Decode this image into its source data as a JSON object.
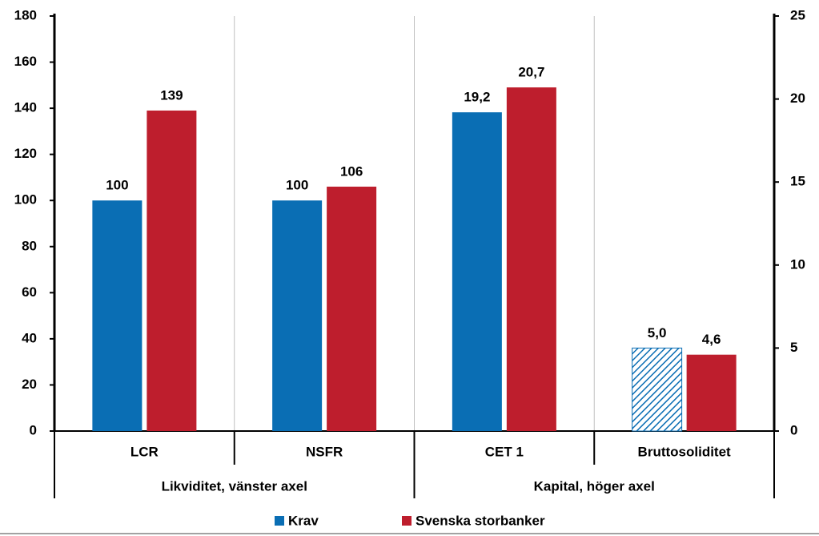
{
  "chart_data": {
    "type": "bar",
    "categories": [
      "LCR",
      "NSFR",
      "CET 1",
      "Bruttosoliditet"
    ],
    "axes": [
      "y",
      "y",
      "y2",
      "y2"
    ],
    "groups": [
      {
        "label": "Likviditet, vänster axel",
        "axis": "y"
      },
      {
        "label": "Kapital, höger axel",
        "axis": "y2"
      }
    ],
    "series": [
      {
        "name": "Krav",
        "color": "#0a6eb4",
        "values": [
          100,
          100,
          19.2,
          5.0
        ],
        "value_labels": [
          "100",
          "100",
          "19,2",
          "5,0"
        ],
        "hatched": [
          false,
          false,
          false,
          true
        ]
      },
      {
        "name": "Svenska storbanker",
        "color": "#be1e2d",
        "values": [
          139,
          106,
          20.7,
          4.6
        ],
        "value_labels": [
          "139",
          "106",
          "20,7",
          "4,6"
        ],
        "hatched": [
          false,
          false,
          false,
          false
        ]
      }
    ],
    "ylim": [
      0,
      180
    ],
    "yticks": [
      0,
      20,
      40,
      60,
      80,
      100,
      120,
      140,
      160,
      180
    ],
    "y2lim": [
      0,
      25
    ],
    "y2ticks": [
      0,
      5,
      10,
      15,
      20,
      25
    ],
    "grid": true
  }
}
